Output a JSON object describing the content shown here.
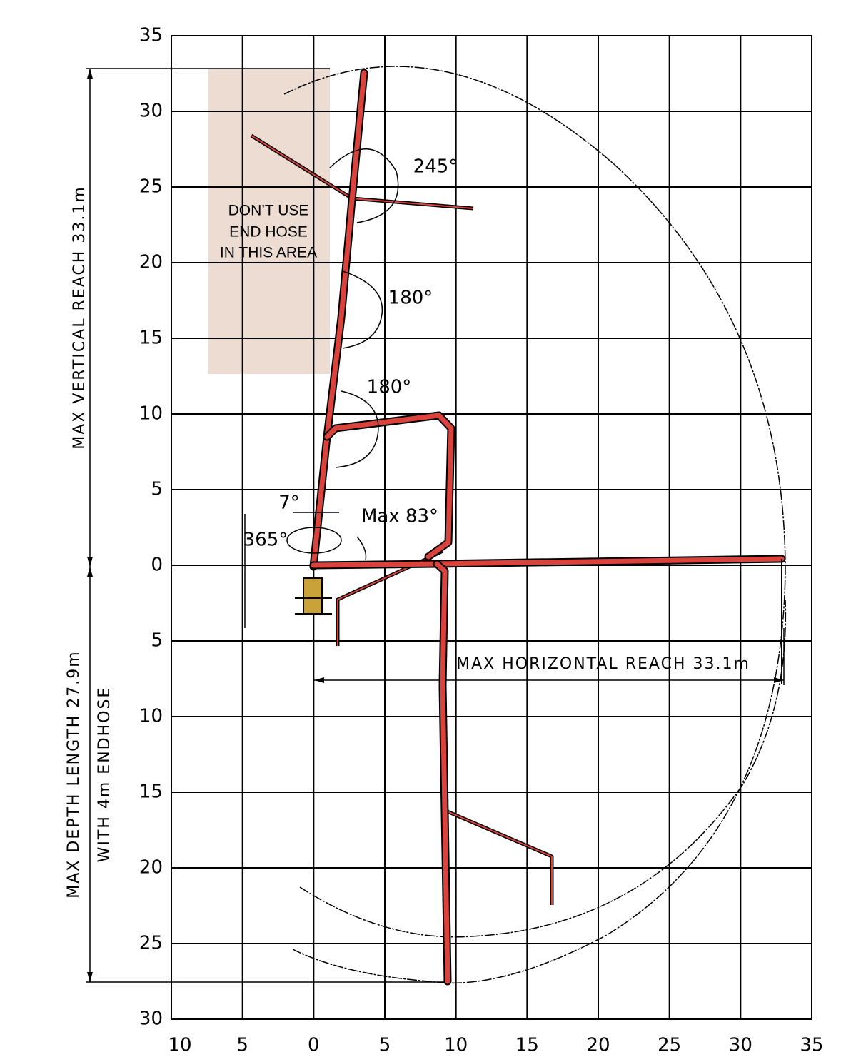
{
  "y_axis_labels": [
    35,
    30,
    25,
    20,
    15,
    10,
    5,
    0,
    5,
    10,
    15,
    20,
    25,
    30
  ],
  "x_axis_labels": [
    10,
    5,
    0,
    5,
    10,
    15,
    20,
    25,
    30,
    35
  ],
  "restricted_area": [
    "DON’T USE",
    "END HOSE",
    "IN THIS AREA"
  ],
  "angles": {
    "top": "245°",
    "upper": "180°",
    "lower": "180°",
    "tilt": "7°",
    "slew": "365°",
    "max": "Max 83°"
  },
  "dimensions": {
    "vertical": "MAX VERTICAL REACH 33.1m",
    "depth": "MAX DEPTH LENGTH 27.9m",
    "endhose": "WITH 4m ENDHOSE",
    "horizontal": "MAX HORIZONTAL REACH 33.1m"
  }
}
